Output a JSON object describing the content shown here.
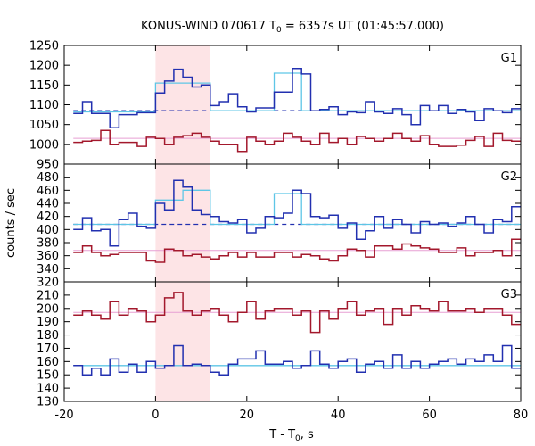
{
  "chart_data": {
    "type": "line",
    "title": "KONUS-WIND 070617 T",
    "title_sub": "0",
    "title_rest": " = 6357s UT (01:45:57.000)",
    "xlabel": "T - T",
    "xlabel_sub": "0",
    "xlabel_rest": ", s",
    "ylabel": "counts / sec",
    "x_range": [
      -20,
      80
    ],
    "x_ticks": [
      -20,
      0,
      20,
      40,
      60,
      80
    ],
    "bin_edges": [
      -18,
      -16,
      -14,
      -12,
      -10,
      -8,
      -6,
      -4,
      -2,
      0,
      2,
      4,
      6,
      8,
      10,
      12,
      14,
      16,
      18,
      20,
      22,
      24,
      26,
      28,
      30,
      32,
      34,
      36,
      38,
      40,
      42,
      44,
      46,
      48,
      50,
      52,
      54,
      56,
      58,
      60,
      62,
      64,
      66,
      68,
      70,
      72,
      74,
      76,
      78,
      80
    ],
    "highlight_interval": [
      0,
      12
    ],
    "panels": [
      {
        "name": "G1",
        "ylim": [
          950,
          1250
        ],
        "yticks": [
          950,
          1000,
          1050,
          1100,
          1150,
          1200,
          1250
        ],
        "blue_series": [
          1078,
          1108,
          1078,
          1078,
          1042,
          1075,
          1075,
          1080,
          1080,
          1130,
          1160,
          1190,
          1170,
          1145,
          1150,
          1098,
          1108,
          1128,
          1095,
          1082,
          1092,
          1092,
          1132,
          1132,
          1192,
          1178,
          1085,
          1088,
          1095,
          1075,
          1082,
          1080,
          1108,
          1082,
          1078,
          1090,
          1075,
          1050,
          1098,
          1085,
          1098,
          1078,
          1088,
          1082,
          1060,
          1090,
          1085,
          1080,
          1090
        ],
        "red_series": [
          1005,
          1008,
          1010,
          1035,
          1000,
          1005,
          1005,
          995,
          1018,
          1015,
          1000,
          1018,
          1022,
          1028,
          1018,
          1008,
          1000,
          1000,
          982,
          1018,
          1008,
          1000,
          1008,
          1028,
          1018,
          1008,
          1000,
          1028,
          1005,
          1015,
          1000,
          1020,
          1015,
          1008,
          1015,
          1028,
          1015,
          1008,
          1022,
          1000,
          995,
          995,
          998,
          1010,
          1020,
          995,
          1028,
          1010,
          1008
        ],
        "blue_fit_segments": [
          {
            "x": [
              -18,
              0
            ],
            "y": 1082
          },
          {
            "x": [
              0,
              6
            ],
            "y": 1155
          },
          {
            "x": [
              6,
              12
            ],
            "y": 1155
          },
          {
            "x": [
              12,
              26
            ],
            "y": 1085
          },
          {
            "x": [
              26,
              32
            ],
            "y": 1180
          },
          {
            "x": [
              32,
              80
            ],
            "y": 1085
          }
        ],
        "blue_background": 1085,
        "pink_background": 1015
      },
      {
        "name": "G2",
        "ylim": [
          320,
          500
        ],
        "yticks": [
          320,
          340,
          360,
          380,
          400,
          420,
          440,
          460,
          480
        ],
        "blue_series": [
          400,
          418,
          398,
          400,
          375,
          415,
          425,
          405,
          402,
          440,
          430,
          475,
          465,
          430,
          423,
          420,
          412,
          410,
          415,
          395,
          402,
          420,
          418,
          425,
          460,
          455,
          420,
          418,
          422,
          402,
          410,
          385,
          398,
          420,
          402,
          415,
          408,
          395,
          412,
          408,
          410,
          405,
          410,
          420,
          408,
          395,
          415,
          412,
          435
        ],
        "red_series": [
          365,
          375,
          365,
          360,
          362,
          365,
          365,
          365,
          352,
          350,
          370,
          368,
          360,
          362,
          358,
          355,
          360,
          365,
          358,
          365,
          358,
          358,
          365,
          365,
          358,
          362,
          360,
          355,
          352,
          360,
          370,
          368,
          358,
          375,
          375,
          370,
          378,
          375,
          372,
          370,
          365,
          365,
          372,
          360,
          365,
          365,
          368,
          360,
          385
        ],
        "blue_fit_segments": [
          {
            "x": [
              -18,
              0
            ],
            "y": 408
          },
          {
            "x": [
              0,
              6
            ],
            "y": 445
          },
          {
            "x": [
              6,
              12
            ],
            "y": 460
          },
          {
            "x": [
              12,
              26
            ],
            "y": 408
          },
          {
            "x": [
              26,
              32
            ],
            "y": 455
          },
          {
            "x": [
              32,
              80
            ],
            "y": 408
          }
        ],
        "blue_background": 408,
        "pink_background": 368
      },
      {
        "name": "G3",
        "ylim": [
          130,
          220
        ],
        "yticks": [
          130,
          140,
          150,
          160,
          170,
          180,
          190,
          200,
          210
        ],
        "blue_series": [
          157,
          150,
          155,
          150,
          162,
          152,
          158,
          152,
          160,
          155,
          157,
          172,
          157,
          158,
          157,
          152,
          150,
          158,
          162,
          162,
          168,
          158,
          158,
          160,
          155,
          157,
          168,
          158,
          155,
          160,
          162,
          152,
          158,
          160,
          155,
          165,
          155,
          160,
          155,
          158,
          160,
          162,
          158,
          162,
          160,
          165,
          160,
          172,
          155
        ],
        "red_series": [
          195,
          198,
          195,
          192,
          205,
          195,
          200,
          198,
          190,
          195,
          208,
          212,
          198,
          195,
          198,
          200,
          195,
          190,
          197,
          205,
          192,
          198,
          200,
          200,
          195,
          198,
          182,
          198,
          192,
          200,
          205,
          195,
          198,
          200,
          188,
          200,
          195,
          202,
          200,
          198,
          205,
          198,
          198,
          200,
          197,
          200,
          200,
          195,
          188
        ],
        "blue_background": 157,
        "pink_background": 197
      }
    ]
  }
}
